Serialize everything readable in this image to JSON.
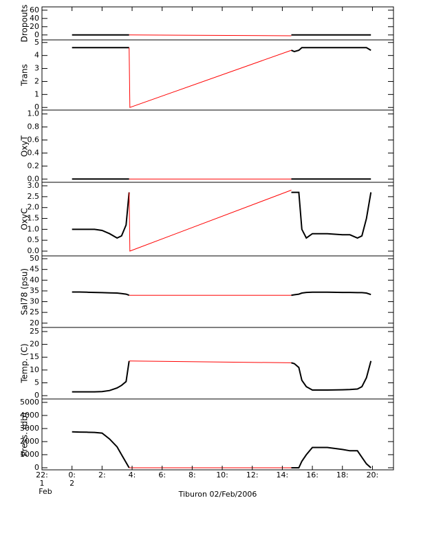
{
  "chart_data": [
    {
      "type": "line",
      "ylabel": "Dropouts",
      "xlim": [
        -2,
        21.4
      ],
      "ylim": [
        -12,
        68
      ],
      "yticks": [
        0,
        20,
        40,
        60
      ],
      "series": [
        {
          "color": "#000000",
          "x": [
            0,
            1,
            2,
            3,
            3.8
          ],
          "values": [
            0,
            0,
            0,
            0,
            0
          ]
        },
        {
          "color": "#ff0000",
          "x": [
            3.8,
            14.6
          ],
          "values": [
            0,
            -2
          ]
        },
        {
          "color": "#000000",
          "x": [
            14.6,
            15.5,
            17,
            18.5,
            19.9
          ],
          "values": [
            0,
            0,
            0,
            0,
            0
          ]
        }
      ]
    },
    {
      "type": "line",
      "ylabel": "Trans",
      "xlim": [
        -2,
        21.4
      ],
      "ylim": [
        -0.2,
        5.2
      ],
      "yticks": [
        0,
        1,
        2,
        3,
        4,
        5
      ],
      "series": [
        {
          "color": "#000000",
          "x": [
            0,
            1,
            2,
            3,
            3.8
          ],
          "values": [
            4.6,
            4.6,
            4.6,
            4.6,
            4.6
          ]
        },
        {
          "color": "#ff0000",
          "x": [
            3.8,
            3.85,
            14.6
          ],
          "values": [
            4.6,
            0,
            4.4
          ]
        },
        {
          "color": "#000000",
          "x": [
            14.6,
            14.8,
            15.1,
            15.3,
            16,
            17,
            18,
            19,
            19.6,
            19.9
          ],
          "values": [
            4.4,
            4.3,
            4.4,
            4.6,
            4.6,
            4.6,
            4.6,
            4.6,
            4.6,
            4.4
          ]
        }
      ]
    },
    {
      "type": "line",
      "ylabel": "OxyT",
      "xlim": [
        -2,
        21.4
      ],
      "ylim": [
        -0.05,
        1.06
      ],
      "yticks": [
        {
          "value": 0,
          "label": "0.0"
        },
        {
          "value": 0.2,
          "label": "0.2"
        },
        {
          "value": 0.4,
          "label": "0.4"
        },
        {
          "value": 0.6,
          "label": "0.6"
        },
        {
          "value": 0.8,
          "label": "0.8"
        },
        {
          "value": 1,
          "label": "1.0"
        }
      ],
      "series": [
        {
          "color": "#000000",
          "x": [
            0,
            1,
            2,
            3,
            3.8
          ],
          "values": [
            0,
            0,
            0,
            0,
            0
          ]
        },
        {
          "color": "#ff0000",
          "x": [
            3.8,
            14.6
          ],
          "values": [
            0,
            0
          ]
        },
        {
          "color": "#000000",
          "x": [
            14.6,
            15.5,
            17,
            18.5,
            19.9
          ],
          "values": [
            0,
            0,
            0,
            0,
            0
          ]
        }
      ]
    },
    {
      "type": "line",
      "ylabel": "OxyC",
      "xlim": [
        -2,
        21.4
      ],
      "ylim": [
        -0.22,
        3.16
      ],
      "yticks": [
        {
          "value": 0,
          "label": "0.0"
        },
        {
          "value": 0.5,
          "label": "0.5"
        },
        {
          "value": 1,
          "label": "1.0"
        },
        {
          "value": 1.5,
          "label": "1.5"
        },
        {
          "value": 2,
          "label": "2.0"
        },
        {
          "value": 2.5,
          "label": "2.5"
        },
        {
          "value": 3,
          "label": "3.0"
        }
      ],
      "series": [
        {
          "color": "#000000",
          "x": [
            0,
            0.5,
            1,
            1.5,
            2,
            2.5,
            3,
            3.3,
            3.6,
            3.8
          ],
          "values": [
            1.0,
            1.0,
            1.0,
            1.0,
            0.95,
            0.8,
            0.6,
            0.7,
            1.2,
            2.7
          ]
        },
        {
          "color": "#ff0000",
          "x": [
            3.8,
            3.85,
            14.6
          ],
          "values": [
            2.7,
            0,
            2.8
          ]
        },
        {
          "color": "#000000",
          "x": [
            14.6,
            14.8,
            15.1,
            15.3,
            15.6,
            16,
            17,
            18,
            18.5,
            19,
            19.3,
            19.6,
            19.9
          ],
          "values": [
            2.7,
            2.7,
            2.7,
            1.0,
            0.6,
            0.8,
            0.8,
            0.75,
            0.75,
            0.6,
            0.7,
            1.5,
            2.7
          ]
        }
      ]
    },
    {
      "type": "line",
      "ylabel": "Sal78 (psu)",
      "xlim": [
        -2,
        21.4
      ],
      "ylim": [
        18,
        51.3
      ],
      "yticks": [
        20,
        25,
        30,
        35,
        40,
        45,
        50
      ],
      "series": [
        {
          "color": "#000000",
          "x": [
            0,
            0.5,
            1,
            1.5,
            2,
            2.5,
            3,
            3.3,
            3.6,
            3.8
          ],
          "values": [
            34.5,
            34.5,
            34.4,
            34.3,
            34.2,
            34.1,
            34.0,
            33.8,
            33.5,
            33.0
          ]
        },
        {
          "color": "#ff0000",
          "x": [
            3.8,
            14.6
          ],
          "values": [
            33.0,
            33.0
          ]
        },
        {
          "color": "#000000",
          "x": [
            14.6,
            14.8,
            15.1,
            15.3,
            15.6,
            16,
            17,
            18,
            18.5,
            19,
            19.3,
            19.6,
            19.9
          ],
          "values": [
            33.0,
            33.2,
            33.5,
            34.0,
            34.3,
            34.4,
            34.4,
            34.3,
            34.3,
            34.2,
            34.2,
            34.0,
            33.3
          ]
        }
      ]
    },
    {
      "type": "line",
      "ylabel": "Temp. (C)",
      "xlim": [
        -2,
        21.4
      ],
      "ylim": [
        -1.3,
        26.6
      ],
      "yticks": [
        0,
        5,
        10,
        15,
        20,
        25
      ],
      "series": [
        {
          "color": "#000000",
          "x": [
            0,
            0.5,
            1,
            1.5,
            2,
            2.5,
            3,
            3.3,
            3.6,
            3.8
          ],
          "values": [
            1.5,
            1.5,
            1.5,
            1.5,
            1.6,
            2,
            3,
            4,
            5.5,
            13.5
          ]
        },
        {
          "color": "#ff0000",
          "x": [
            3.8,
            14.6
          ],
          "values": [
            13.5,
            12.8
          ]
        },
        {
          "color": "#000000",
          "x": [
            14.6,
            14.8,
            15.1,
            15.3,
            15.6,
            16,
            17,
            18,
            18.5,
            19,
            19.3,
            19.6,
            19.9
          ],
          "values": [
            12.8,
            12.5,
            11,
            6,
            3.5,
            2.2,
            2.2,
            2.3,
            2.4,
            2.6,
            3.5,
            7,
            13.5
          ]
        }
      ]
    },
    {
      "type": "line",
      "ylabel": "Press. (db)",
      "xlim": [
        -2,
        21.4
      ],
      "ylim": [
        -160,
        5260
      ],
      "yticks": [
        0,
        1000,
        2000,
        3000,
        4000,
        5000
      ],
      "xlabel": "Tiburon 02/Feb/2006",
      "xticks": [
        {
          "value": -2,
          "label": [
            "22:",
            "1",
            "Feb"
          ]
        },
        {
          "value": 0,
          "label": [
            "0:",
            "2"
          ]
        },
        {
          "value": 2,
          "label": [
            "2:"
          ]
        },
        {
          "value": 4,
          "label": [
            "4:"
          ]
        },
        {
          "value": 6,
          "label": [
            "6:"
          ]
        },
        {
          "value": 8,
          "label": [
            "8:"
          ]
        },
        {
          "value": 10,
          "label": [
            "10:"
          ]
        },
        {
          "value": 12,
          "label": [
            "12:"
          ]
        },
        {
          "value": 14,
          "label": [
            "14:"
          ]
        },
        {
          "value": 16,
          "label": [
            "16:"
          ]
        },
        {
          "value": 18,
          "label": [
            "18:"
          ]
        },
        {
          "value": 20,
          "label": [
            "20:"
          ]
        }
      ],
      "series": [
        {
          "color": "#000000",
          "x": [
            0,
            0.5,
            1,
            1.5,
            2,
            2.5,
            3,
            3.3,
            3.6,
            3.8
          ],
          "values": [
            2750,
            2730,
            2720,
            2700,
            2650,
            2200,
            1600,
            1000,
            400,
            0
          ]
        },
        {
          "color": "#ff0000",
          "x": [
            3.8,
            14.6
          ],
          "values": [
            0,
            0
          ]
        },
        {
          "color": "#000000",
          "x": [
            14.6,
            14.8,
            15.1,
            15.3,
            15.6,
            16,
            17,
            18,
            18.5,
            19,
            19.3,
            19.6,
            19.9
          ],
          "values": [
            0,
            0,
            0,
            500,
            1000,
            1550,
            1550,
            1400,
            1300,
            1300,
            800,
            300,
            0
          ]
        }
      ]
    }
  ]
}
